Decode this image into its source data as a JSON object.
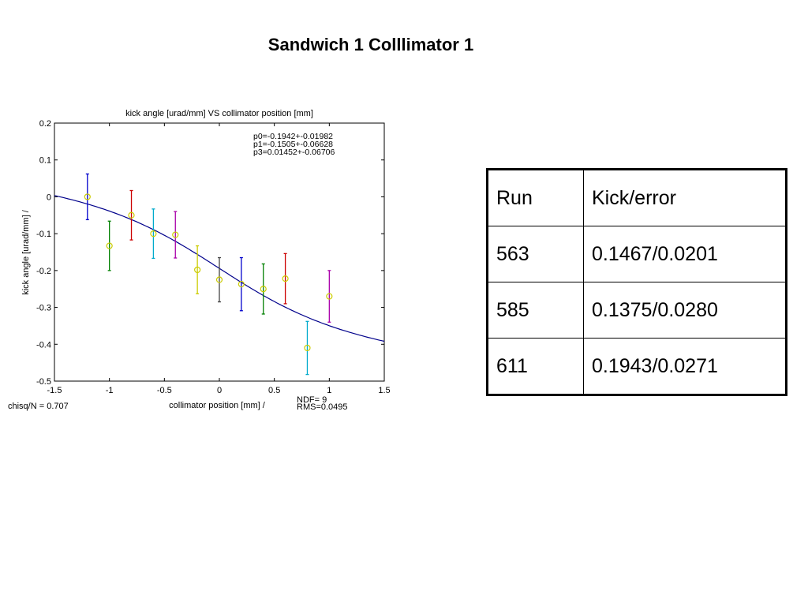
{
  "slide": {
    "title": "Sandwich 1 Colllimator 1"
  },
  "chart_data": {
    "type": "scatter",
    "title": "kick angle [urad/mm] VS collimator position [mm]",
    "xlabel": "collimator position [mm] /",
    "ylabel": "kick angle [urad/mm] /",
    "xlim": [
      -1.5,
      1.5
    ],
    "ylim": [
      -0.5,
      0.2
    ],
    "x_ticks": [
      -1.5,
      -1,
      -0.5,
      0,
      0.5,
      1,
      1.5
    ],
    "x_tick_labels": [
      "-1.5",
      "-1",
      "-0.5",
      "0",
      "0.5",
      "1",
      "1.5"
    ],
    "y_ticks": [
      0.2,
      0.1,
      0,
      -0.1,
      -0.2,
      -0.3,
      -0.4,
      -0.5
    ],
    "y_tick_labels": [
      "0.2",
      "0.1",
      "0",
      "-0.1",
      "-0.2",
      "-0.3",
      "-0.4",
      "-0.5"
    ],
    "grid": false,
    "points": [
      {
        "x": -1.2,
        "y": 0.0,
        "err": 0.062,
        "bar_color": "#0000cc",
        "marker_color": "#cccc00"
      },
      {
        "x": -1.0,
        "y": -0.133,
        "err": 0.067,
        "bar_color": "#008000",
        "marker_color": "#cccc00"
      },
      {
        "x": -0.8,
        "y": -0.05,
        "err": 0.067,
        "bar_color": "#cc0000",
        "marker_color": "#cccc00"
      },
      {
        "x": -0.6,
        "y": -0.1,
        "err": 0.067,
        "bar_color": "#00aacc",
        "marker_color": "#cccc00"
      },
      {
        "x": -0.4,
        "y": -0.103,
        "err": 0.063,
        "bar_color": "#aa00aa",
        "marker_color": "#cccc00"
      },
      {
        "x": -0.2,
        "y": -0.198,
        "err": 0.065,
        "bar_color": "#cccc00",
        "marker_color": "#cccc00"
      },
      {
        "x": 0.0,
        "y": -0.225,
        "err": 0.06,
        "bar_color": "#444444",
        "marker_color": "#cccc00"
      },
      {
        "x": 0.2,
        "y": -0.237,
        "err": 0.072,
        "bar_color": "#0000cc",
        "marker_color": "#cccc00"
      },
      {
        "x": 0.4,
        "y": -0.25,
        "err": 0.068,
        "bar_color": "#008000",
        "marker_color": "#cccc00"
      },
      {
        "x": 0.6,
        "y": -0.222,
        "err": 0.068,
        "bar_color": "#cc0000",
        "marker_color": "#cccc00"
      },
      {
        "x": 0.8,
        "y": -0.41,
        "err": 0.072,
        "bar_color": "#00aacc",
        "marker_color": "#cccc00"
      },
      {
        "x": 1.0,
        "y": -0.27,
        "err": 0.07,
        "bar_color": "#aa00aa",
        "marker_color": "#cccc00"
      }
    ],
    "fit": {
      "p0": -0.1942,
      "p1": -0.1505,
      "p3": 0.01452,
      "color": "#00008b",
      "labels": [
        "p0=-0.1942+-0.01982",
        "p1=-0.1505+-0.06628",
        "p3=0.01452+-0.06706"
      ]
    },
    "footer": {
      "chisq": "chisq/N = 0.707",
      "ndf": "NDF=   9",
      "rms": "RMS=0.0495"
    }
  },
  "table": {
    "headers": [
      "Run",
      "Kick/error"
    ],
    "rows": [
      [
        "563",
        "0.1467/0.0201"
      ],
      [
        "585",
        "0.1375/0.0280"
      ],
      [
        "611",
        "0.1943/0.0271"
      ]
    ]
  }
}
